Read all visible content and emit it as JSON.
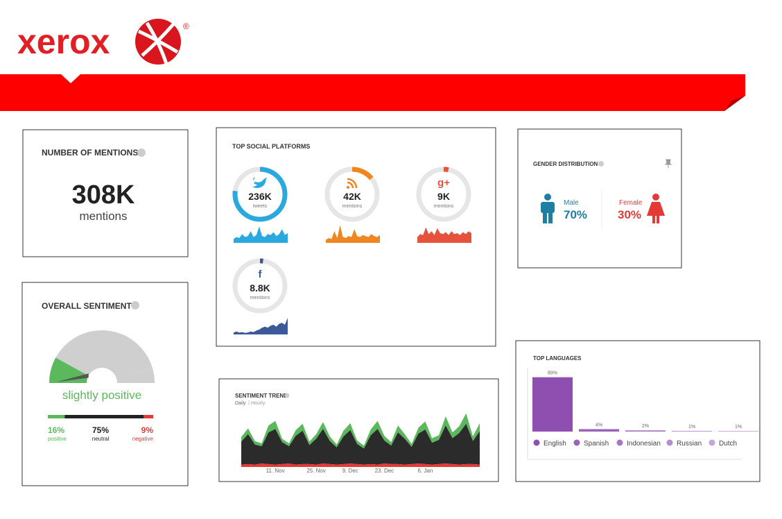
{
  "header": {
    "logo_text": "xerox",
    "registered": "®"
  },
  "mentions": {
    "title": "NUMBER OF MENTIONS",
    "value": "308K",
    "unit": "mentions"
  },
  "sentiment": {
    "title": "OVERALL SENTIMENT",
    "verdict": "slightly positive",
    "segments": [
      {
        "name": "positive",
        "value": 16,
        "value_label": "16%",
        "color": "#5cb85c"
      },
      {
        "name": "neutral",
        "value": 75,
        "value_label": "75%",
        "color": "#222222"
      },
      {
        "name": "negative",
        "value": 9,
        "value_label": "9%",
        "color": "#e53935"
      }
    ]
  },
  "platforms": {
    "title": "TOP SOCIAL PLATFORMS",
    "spark_ylim": [
      0,
      100
    ],
    "items": [
      {
        "value": "236K",
        "unit": "tweets",
        "share": 77,
        "color": "#29a9e0",
        "spark": [
          20,
          30,
          25,
          45,
          30,
          35,
          60,
          30,
          40,
          85,
          35,
          30,
          45,
          40,
          55,
          35,
          45,
          70,
          40,
          50
        ]
      },
      {
        "value": "42K",
        "unit": "mentions",
        "share": 14,
        "color": "#f0861f",
        "spark": [
          15,
          25,
          20,
          60,
          25,
          90,
          30,
          25,
          35,
          30,
          70,
          35,
          30,
          40,
          35,
          30,
          45,
          35,
          30,
          40
        ]
      },
      {
        "icon": "g+",
        "value": "9K",
        "unit": "mentions",
        "share": 3,
        "color": "#e5533d",
        "spark": [
          30,
          45,
          40,
          80,
          45,
          60,
          40,
          75,
          50,
          45,
          55,
          40,
          60,
          45,
          50,
          40,
          55,
          45,
          60,
          50
        ]
      },
      {
        "icon": "f",
        "value": "8.8K",
        "unit": "mentions",
        "share": 2,
        "color": "#3b5998",
        "spark": [
          10,
          15,
          10,
          12,
          8,
          10,
          15,
          12,
          20,
          25,
          35,
          40,
          35,
          45,
          50,
          40,
          55,
          60,
          50,
          85
        ]
      }
    ]
  },
  "gender": {
    "title": "GENDER DISTRIBUTION",
    "male": {
      "label": "Male",
      "value": "70%"
    },
    "female": {
      "label": "Female",
      "value": "30%"
    }
  },
  "sentiment_trend": {
    "type": "area",
    "title": "SENTIMENT TREND",
    "options": [
      "Daily",
      "Hourly"
    ],
    "categories": [
      null,
      null,
      null,
      null,
      null,
      "11. Nov",
      null,
      null,
      null,
      null,
      null,
      "25. Nov",
      null,
      null,
      null,
      null,
      "9. Dec",
      null,
      null,
      null,
      null,
      "23. Dec",
      null,
      null,
      null,
      null,
      null,
      "6. Jan",
      null,
      null,
      null,
      null,
      null,
      null,
      null,
      null
    ],
    "ylim": [
      0,
      100
    ],
    "series": [
      {
        "name": "negative",
        "color": "#e53935",
        "values": [
          4,
          5,
          4,
          6,
          5,
          4,
          5,
          6,
          4,
          5,
          5,
          4,
          6,
          5,
          4,
          5,
          6,
          5,
          4,
          5,
          4,
          6,
          5,
          5,
          4,
          5,
          6,
          5,
          4,
          5,
          6,
          5,
          4,
          5,
          5,
          4
        ]
      },
      {
        "name": "neutral",
        "color": "#2b2b2b",
        "values": [
          40,
          52,
          35,
          30,
          55,
          62,
          38,
          30,
          50,
          58,
          33,
          45,
          60,
          40,
          30,
          48,
          58,
          35,
          28,
          50,
          62,
          40,
          32,
          55,
          45,
          30,
          52,
          60,
          38,
          42,
          66,
          45,
          55,
          70,
          40,
          58
        ]
      },
      {
        "name": "positive",
        "color": "#5cb85c",
        "values": [
          8,
          10,
          6,
          5,
          12,
          14,
          6,
          5,
          10,
          12,
          6,
          8,
          12,
          8,
          5,
          10,
          12,
          6,
          5,
          10,
          14,
          8,
          6,
          12,
          8,
          5,
          10,
          14,
          8,
          8,
          16,
          10,
          12,
          18,
          8,
          14
        ]
      }
    ]
  },
  "languages": {
    "type": "bar",
    "title": "TOP LANGUAGES",
    "categories": [
      "English",
      "Spanish",
      "Indonesian",
      "Russian",
      "Dutch"
    ],
    "values": [
      89,
      4,
      2,
      1,
      1
    ],
    "value_labels": [
      "89%",
      "4%",
      "2%",
      "1%",
      "1%"
    ],
    "colors": [
      "#8e4fb0",
      "#9a62ba",
      "#a878c4",
      "#b58ecf",
      "#c4a6da"
    ],
    "ylim": [
      0,
      100
    ]
  }
}
